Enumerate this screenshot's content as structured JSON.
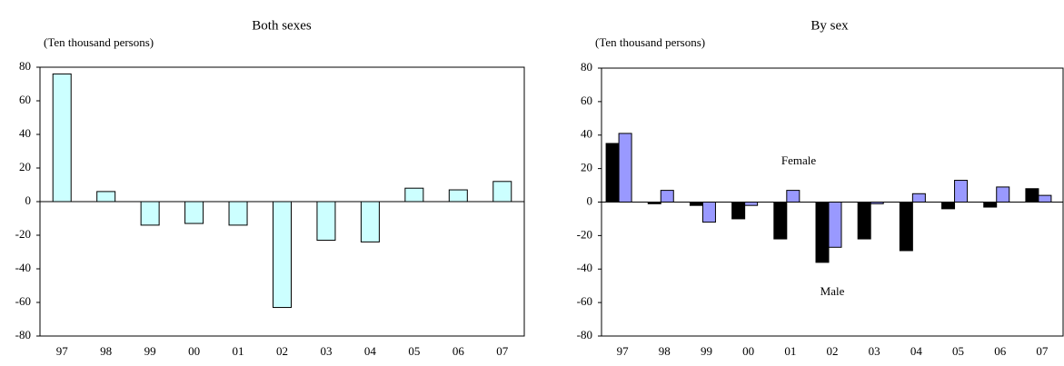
{
  "chart_data": [
    {
      "type": "bar",
      "title": "Both sexes",
      "subtitle": "(Ten thousand persons)",
      "categories": [
        "97",
        "98",
        "99",
        "00",
        "01",
        "02",
        "03",
        "04",
        "05",
        "06",
        "07"
      ],
      "values": [
        76,
        6,
        -14,
        -13,
        -14,
        -63,
        -23,
        -24,
        8,
        7,
        12
      ],
      "color": "#ccffff",
      "ylim": [
        -80,
        80
      ],
      "yticks": [
        -80,
        -60,
        -40,
        -20,
        0,
        20,
        40,
        60,
        80
      ]
    },
    {
      "type": "grouped-bar",
      "title": "By sex",
      "subtitle": "(Ten thousand persons)",
      "categories": [
        "97",
        "98",
        "99",
        "00",
        "01",
        "02",
        "03",
        "04",
        "05",
        "06",
        "07"
      ],
      "series": [
        {
          "name": "Male",
          "color": "#000000",
          "values": [
            35,
            -1,
            -2,
            -10,
            -22,
            -36,
            -22,
            -29,
            -4,
            -3,
            8
          ]
        },
        {
          "name": "Female",
          "color": "#9999ff",
          "values": [
            41,
            7,
            -12,
            -2,
            7,
            -27,
            -1,
            5,
            13,
            9,
            4
          ]
        }
      ],
      "ylim": [
        -80,
        80
      ],
      "yticks": [
        -80,
        -60,
        -40,
        -20,
        0,
        20,
        40,
        60,
        80
      ]
    }
  ]
}
